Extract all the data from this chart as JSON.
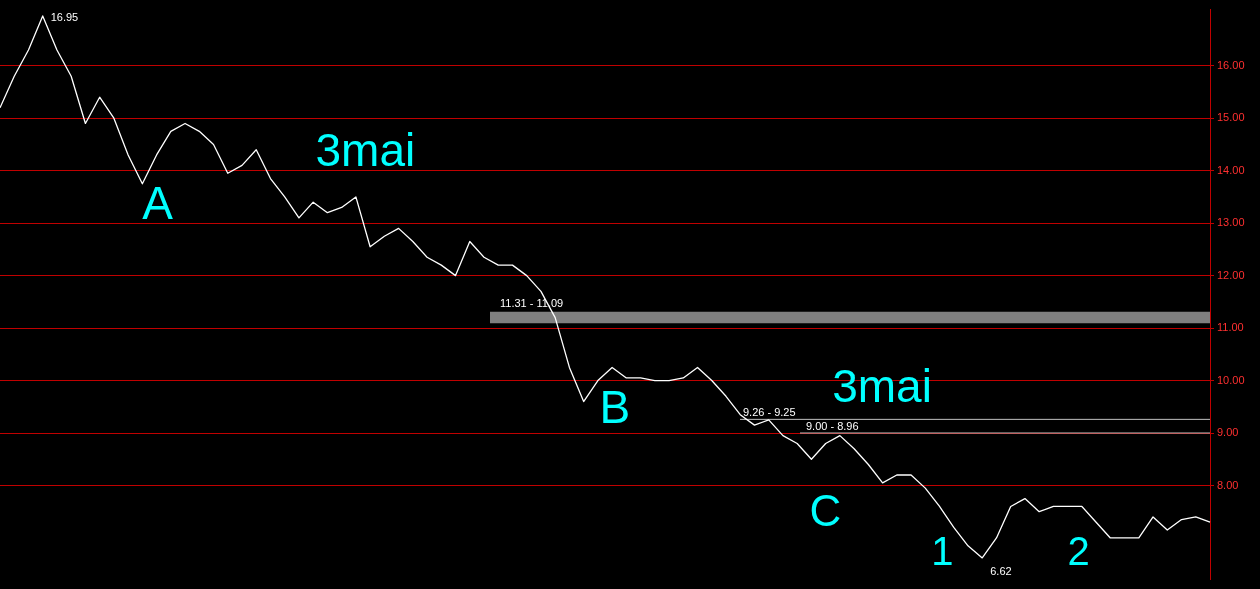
{
  "chart_data": {
    "type": "line",
    "categories": [
      null,
      null,
      null,
      null,
      null,
      null,
      null,
      null,
      null,
      null,
      null,
      null,
      null,
      null,
      null,
      null,
      null,
      null,
      null,
      null,
      null,
      null,
      null,
      null,
      null,
      null,
      null,
      null,
      null,
      null,
      null,
      null,
      null,
      null,
      null,
      null,
      null,
      null,
      null,
      null,
      null,
      null,
      null,
      null,
      null,
      null,
      null,
      null,
      null,
      null,
      null,
      null,
      null,
      null,
      null,
      null,
      null,
      null,
      null,
      null,
      null,
      null,
      null,
      null,
      null,
      null,
      null,
      null,
      null,
      null,
      null,
      null,
      null,
      null,
      null,
      null,
      null,
      null,
      null,
      null,
      null,
      null,
      null,
      null,
      null,
      null
    ],
    "series": [
      {
        "color": "#ffffff",
        "values": [
          15.2,
          15.8,
          16.3,
          16.95,
          16.3,
          15.8,
          14.9,
          15.4,
          15.0,
          14.3,
          13.75,
          14.3,
          14.75,
          14.9,
          14.75,
          14.5,
          13.95,
          14.1,
          14.4,
          13.85,
          13.5,
          13.1,
          13.4,
          13.2,
          13.3,
          13.5,
          12.55,
          12.75,
          12.9,
          12.65,
          12.35,
          12.2,
          12.0,
          12.65,
          12.35,
          12.2,
          12.2,
          12.0,
          11.7,
          11.2,
          10.25,
          9.6,
          10.0,
          10.25,
          10.05,
          10.05,
          10.0,
          10.0,
          10.05,
          10.25,
          10.0,
          9.7,
          9.35,
          9.15,
          9.25,
          8.95,
          8.8,
          8.5,
          8.8,
          8.95,
          8.7,
          8.4,
          8.05,
          8.2,
          8.2,
          7.95,
          7.6,
          7.2,
          6.85,
          6.62,
          7.0,
          7.6,
          7.75,
          7.5,
          7.6,
          7.6,
          7.6,
          7.3,
          7.0,
          7.0,
          7.0,
          7.4,
          7.15,
          7.35,
          7.4,
          7.3
        ]
      }
    ],
    "ylim": [
      6.21,
      17.07
    ],
    "yticks": [
      {
        "value": 8,
        "label": "8.00"
      },
      {
        "value": 9,
        "label": "9.00"
      },
      {
        "value": 10,
        "label": "10.00"
      },
      {
        "value": 11,
        "label": "11.00"
      },
      {
        "value": 12,
        "label": "12.00"
      },
      {
        "value": 13,
        "label": "13.00"
      },
      {
        "value": 14,
        "label": "14.00"
      },
      {
        "value": 15,
        "label": "15.00"
      },
      {
        "value": 16,
        "label": "16.00"
      }
    ],
    "grid": "y",
    "tick_labels": "y",
    "marker": "none",
    "line_style": "solid",
    "legend": false,
    "bands": [
      {
        "axis": "y",
        "from": 11.09,
        "to": 11.31,
        "label": "11.31 - 11.09",
        "color": "#808080"
      }
    ],
    "ref_lines": [
      {
        "axis": "y",
        "value": 9.26,
        "label": "9.26 - 9.25",
        "color": "#c0c0c0"
      },
      {
        "axis": "y",
        "value": 9.0,
        "label": "9.00 - 8.96",
        "color": "#c0c0c0"
      }
    ],
    "annotations": [
      "16.95",
      "A",
      "3mai",
      "B",
      "3mai",
      "C",
      "1",
      "2",
      "6.62"
    ]
  }
}
